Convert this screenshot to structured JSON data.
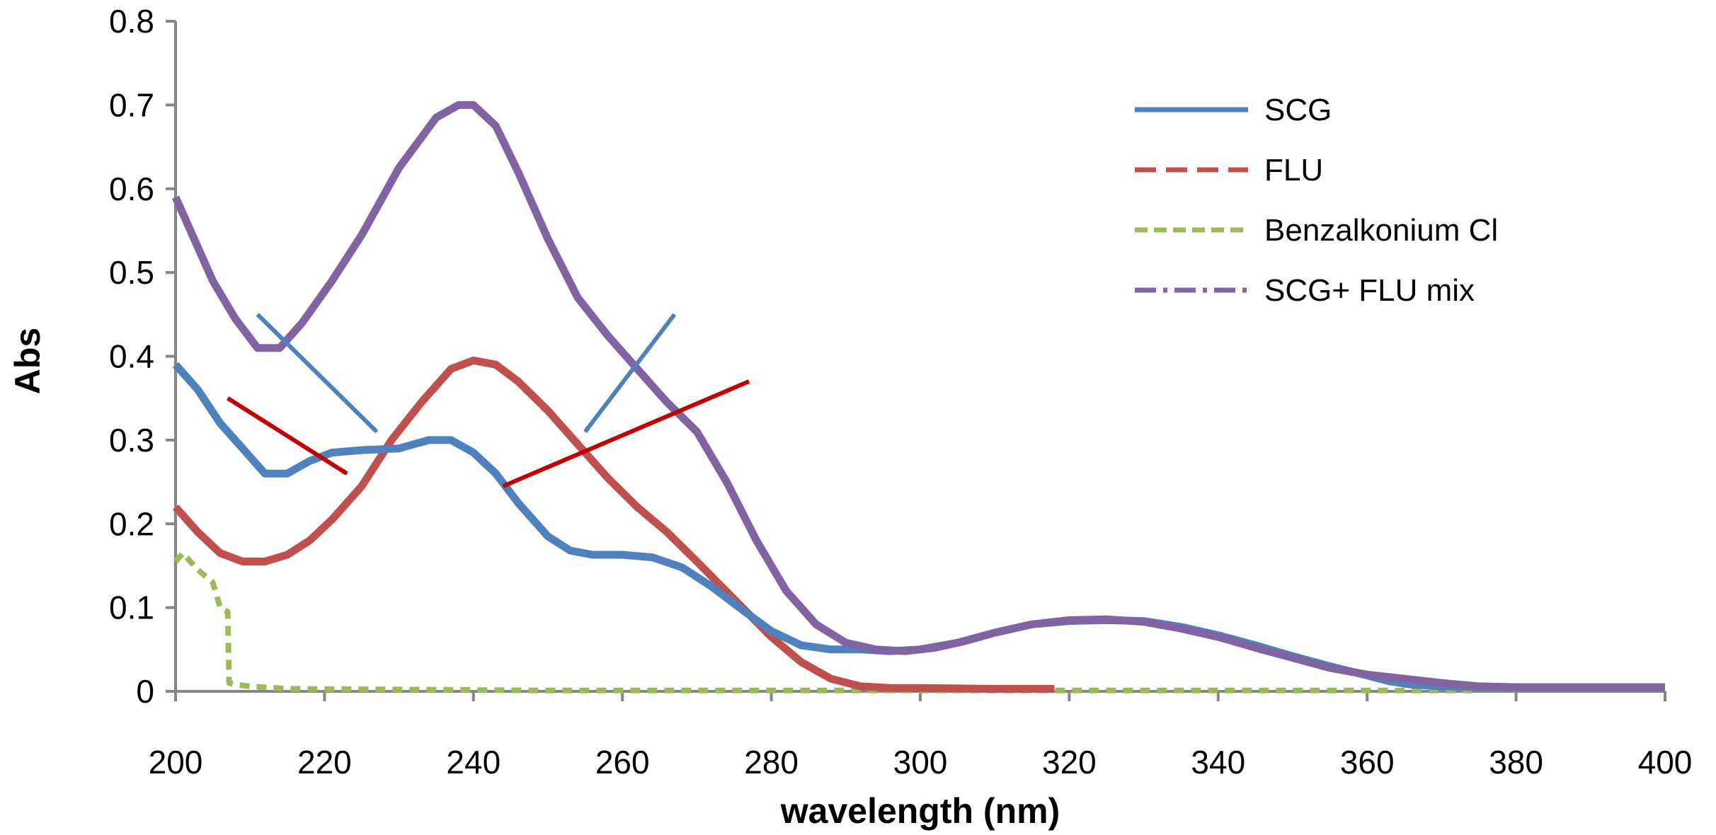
{
  "chart_data": {
    "type": "line",
    "title": "",
    "xlabel": "wavelength (nm)",
    "ylabel": "Abs",
    "xlim": [
      200,
      400
    ],
    "ylim": [
      0,
      0.8
    ],
    "x_ticks": [
      200,
      220,
      240,
      260,
      280,
      300,
      320,
      340,
      360,
      380,
      400
    ],
    "y_ticks": [
      0,
      0.1,
      0.2,
      0.3,
      0.4,
      0.5,
      0.6,
      0.7,
      0.8
    ],
    "y_tick_labels": [
      "0",
      "0.1",
      "0.2",
      "0.3",
      "0.4",
      "0.5",
      "0.6",
      "0.7",
      "0.8"
    ],
    "grid": false,
    "legend_position": "top-right",
    "series": [
      {
        "name": "SCG",
        "color": "#4F81BD",
        "style": "solid",
        "x": [
          200,
          203,
          206,
          209,
          212,
          215,
          218,
          221,
          225,
          230,
          234,
          237,
          240,
          243,
          246,
          250,
          253,
          256,
          260,
          264,
          268,
          272,
          276,
          280,
          284,
          288,
          292,
          296,
          300,
          305,
          310,
          315,
          320,
          325,
          330,
          335,
          340,
          345,
          350,
          355,
          360,
          363,
          366,
          370,
          375,
          380,
          390,
          400
        ],
        "y": [
          0.39,
          0.36,
          0.32,
          0.29,
          0.26,
          0.26,
          0.275,
          0.285,
          0.288,
          0.29,
          0.3,
          0.3,
          0.285,
          0.26,
          0.225,
          0.185,
          0.168,
          0.163,
          0.163,
          0.16,
          0.148,
          0.125,
          0.098,
          0.072,
          0.055,
          0.05,
          0.05,
          0.048,
          0.05,
          0.058,
          0.07,
          0.08,
          0.084,
          0.085,
          0.084,
          0.077,
          0.067,
          0.055,
          0.042,
          0.03,
          0.019,
          0.012,
          0.008,
          0.006,
          0.005,
          0.005,
          0.005,
          0.005
        ]
      },
      {
        "name": "FLU",
        "color": "#C0504D",
        "style": "dashed",
        "x": [
          200,
          203,
          206,
          209,
          212,
          215,
          218,
          221,
          225,
          229,
          233,
          237,
          240,
          243,
          246,
          250,
          254,
          258,
          262,
          266,
          270,
          275,
          280,
          284,
          288,
          292,
          296,
          300,
          310,
          318
        ],
        "y": [
          0.22,
          0.19,
          0.165,
          0.155,
          0.155,
          0.163,
          0.18,
          0.205,
          0.245,
          0.3,
          0.345,
          0.385,
          0.395,
          0.39,
          0.37,
          0.335,
          0.295,
          0.255,
          0.22,
          0.19,
          0.155,
          0.11,
          0.065,
          0.035,
          0.015,
          0.006,
          0.004,
          0.004,
          0.003,
          0.003
        ]
      },
      {
        "name": "Benzalkonium Cl",
        "color": "#9BBB59",
        "style": "dashed",
        "x": [
          200,
          201,
          203,
          205,
          206,
          207,
          207.2,
          208,
          210,
          215,
          250,
          300,
          350,
          375
        ],
        "y": [
          0.155,
          0.165,
          0.145,
          0.13,
          0.1,
          0.095,
          0.01,
          0.008,
          0.006,
          0.003,
          0.001,
          0.001,
          0.001,
          0.001
        ]
      },
      {
        "name": "SCG+ FLU mix",
        "color": "#8064A2",
        "style": "dash-dot",
        "x": [
          200,
          202,
          205,
          208,
          211,
          214,
          217,
          221,
          225,
          230,
          235,
          238,
          240,
          243,
          246,
          250,
          254,
          258,
          262,
          266,
          270,
          274,
          278,
          282,
          286,
          290,
          294,
          298,
          302,
          306,
          310,
          315,
          320,
          325,
          330,
          335,
          340,
          345,
          350,
          355,
          360,
          365,
          370,
          375,
          380,
          390,
          400
        ],
        "y": [
          0.59,
          0.55,
          0.49,
          0.445,
          0.41,
          0.41,
          0.44,
          0.49,
          0.545,
          0.625,
          0.685,
          0.7,
          0.7,
          0.675,
          0.62,
          0.54,
          0.47,
          0.425,
          0.385,
          0.345,
          0.31,
          0.25,
          0.18,
          0.12,
          0.08,
          0.058,
          0.05,
          0.048,
          0.052,
          0.06,
          0.07,
          0.08,
          0.085,
          0.086,
          0.083,
          0.075,
          0.065,
          0.052,
          0.04,
          0.028,
          0.02,
          0.015,
          0.01,
          0.006,
          0.005,
          0.005,
          0.005
        ]
      }
    ],
    "annotations": [
      {
        "type": "arrow",
        "color": "#4F81BD",
        "from": [
          211,
          0.45
        ],
        "to": [
          227,
          0.31
        ]
      },
      {
        "type": "arrow",
        "color": "#4F81BD",
        "from": [
          267,
          0.45
        ],
        "to": [
          255,
          0.31
        ]
      },
      {
        "type": "arrow",
        "color": "#C00000",
        "from": [
          207,
          0.35
        ],
        "to": [
          223,
          0.26
        ]
      },
      {
        "type": "arrow",
        "color": "#C00000",
        "from": [
          277,
          0.37
        ],
        "to": [
          244,
          0.245
        ]
      }
    ]
  }
}
